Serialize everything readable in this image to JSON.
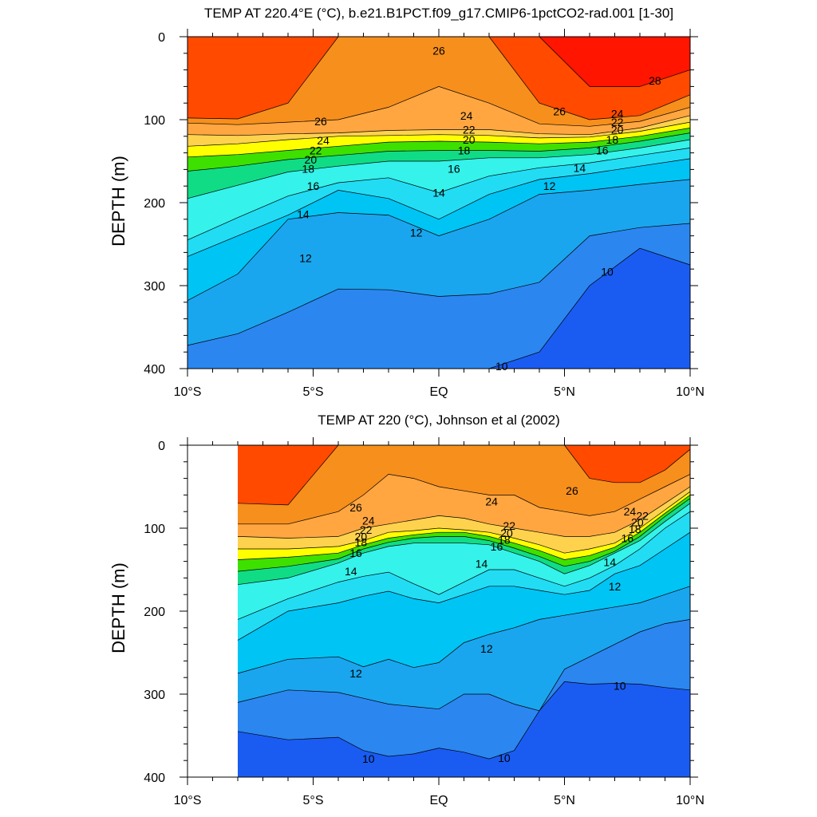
{
  "colors": {
    "levels": [
      {
        "min": 8,
        "color": "#0b3fe6"
      },
      {
        "min": 9,
        "color": "#1a5cf2"
      },
      {
        "min": 10,
        "color": "#2b86f0"
      },
      {
        "min": 11,
        "color": "#1aa6ee"
      },
      {
        "min": 12,
        "color": "#00c4f4"
      },
      {
        "min": 13,
        "color": "#22dcf4"
      },
      {
        "min": 14,
        "color": "#35f2ea"
      },
      {
        "min": 15,
        "color": "#18ebc2"
      },
      {
        "min": 16,
        "color": "#10dc86"
      },
      {
        "min": 17,
        "color": "#20d84a"
      },
      {
        "min": 18,
        "color": "#3ee000"
      },
      {
        "min": 19,
        "color": "#b8f000"
      },
      {
        "min": 20,
        "color": "#ffff00"
      },
      {
        "min": 21,
        "color": "#ffe94a"
      },
      {
        "min": 22,
        "color": "#ffd24e"
      },
      {
        "min": 23,
        "color": "#ffbc4a"
      },
      {
        "min": 24,
        "color": "#ffa640"
      },
      {
        "min": 25,
        "color": "#ffa13a"
      },
      {
        "min": 26,
        "color": "#f78f1c"
      },
      {
        "min": 27,
        "color": "#ff4a00"
      },
      {
        "min": 28,
        "color": "#ff1500"
      }
    ],
    "lines": "#000000"
  },
  "chart_data": [
    {
      "type": "contour",
      "title": "TEMP AT 220.4°E (°C), b.e21.B1PCT.f09_g17.CMIP6-1pctCO2-rad.001 [1-30]",
      "xlabel": "",
      "ylabel": "DEPTH (m)",
      "xlim": [
        -10,
        10
      ],
      "ylim": [
        0,
        400
      ],
      "y_inverted": true,
      "xticks": [
        {
          "value": -10,
          "label": "10°S"
        },
        {
          "value": -5,
          "label": "5°S"
        },
        {
          "value": 0,
          "label": "EQ"
        },
        {
          "value": 5,
          "label": "5°N"
        },
        {
          "value": 10,
          "label": "10°N"
        }
      ],
      "yticks": [
        0,
        100,
        200,
        300,
        400
      ],
      "data_xrange": [
        -10,
        10
      ],
      "x": [
        -10,
        -8,
        -6,
        -4,
        -2,
        0,
        2,
        4,
        6,
        8,
        10
      ],
      "isotherm_depths": {
        "28": [
          -1,
          -1,
          -1,
          -1,
          -1,
          -1,
          -1,
          -1,
          60,
          60,
          40
        ],
        "27": [
          98,
          99,
          80,
          0,
          -1,
          -1,
          0,
          80,
          100,
          95,
          70
        ],
        "26": [
          104,
          106,
          103,
          100,
          85,
          60,
          80,
          105,
          108,
          102,
          85
        ],
        "24": [
          118,
          119,
          117,
          116,
          113,
          112,
          112,
          117,
          118,
          110,
          95
        ],
        "22": [
          132,
          129,
          124,
          120,
          119,
          118,
          119,
          122,
          121,
          114,
          103
        ],
        "20": [
          145,
          142,
          137,
          132,
          127,
          126,
          127,
          129,
          127,
          120,
          110
        ],
        "18": [
          162,
          156,
          148,
          143,
          138,
          137,
          137,
          138,
          134,
          126,
          116
        ],
        "16": [
          195,
          179,
          163,
          156,
          150,
          150,
          146,
          146,
          142,
          134,
          124
        ],
        "14": [
          245,
          218,
          192,
          176,
          170,
          188,
          168,
          158,
          152,
          143,
          134
        ],
        "13": [
          265,
          240,
          215,
          185,
          195,
          220,
          190,
          172,
          165,
          156,
          147
        ],
        "12": [
          318,
          286,
          220,
          212,
          215,
          240,
          220,
          190,
          185,
          178,
          172
        ],
        "11": [
          372,
          358,
          332,
          304,
          305,
          313,
          310,
          296,
          240,
          230,
          225
        ],
        "10": [
          999,
          999,
          999,
          999,
          992,
          992,
          997,
          380,
          300,
          255,
          275
        ]
      },
      "contour_labels": [
        {
          "value": 26,
          "x": 0.0,
          "depth": 17
        },
        {
          "value": 28,
          "x": 8.6,
          "depth": 53
        },
        {
          "value": 26,
          "x": -4.7,
          "depth": 102
        },
        {
          "value": 24,
          "x": 1.1,
          "depth": 95
        },
        {
          "value": 26,
          "x": 4.8,
          "depth": 90
        },
        {
          "value": 24,
          "x": 7.1,
          "depth": 93
        },
        {
          "value": 22,
          "x": 7.1,
          "depth": 103
        },
        {
          "value": 20,
          "x": 7.1,
          "depth": 112
        },
        {
          "value": 24,
          "x": -4.6,
          "depth": 125
        },
        {
          "value": 22,
          "x": -4.9,
          "depth": 137
        },
        {
          "value": 20,
          "x": -5.1,
          "depth": 148
        },
        {
          "value": 18,
          "x": -5.2,
          "depth": 159
        },
        {
          "value": 22,
          "x": 1.2,
          "depth": 112
        },
        {
          "value": 20,
          "x": 1.2,
          "depth": 124
        },
        {
          "value": 18,
          "x": 1.0,
          "depth": 137
        },
        {
          "value": 18,
          "x": 6.9,
          "depth": 124
        },
        {
          "value": 16,
          "x": 6.5,
          "depth": 137
        },
        {
          "value": 14,
          "x": 5.6,
          "depth": 158
        },
        {
          "value": 16,
          "x": 0.6,
          "depth": 159
        },
        {
          "value": 16,
          "x": -5.0,
          "depth": 180
        },
        {
          "value": 14,
          "x": -5.4,
          "depth": 214
        },
        {
          "value": 14,
          "x": 0.0,
          "depth": 188
        },
        {
          "value": 12,
          "x": 4.4,
          "depth": 180
        },
        {
          "value": 12,
          "x": -0.9,
          "depth": 236
        },
        {
          "value": 12,
          "x": -5.3,
          "depth": 267
        },
        {
          "value": 10,
          "x": 6.7,
          "depth": 283
        },
        {
          "value": 10,
          "x": 2.5,
          "depth": 397
        }
      ]
    },
    {
      "type": "contour",
      "title": "TEMP AT 220 (°C), Johnson et al (2002)",
      "xlabel": "",
      "ylabel": "DEPTH (m)",
      "xlim": [
        -10,
        10
      ],
      "ylim": [
        0,
        400
      ],
      "y_inverted": true,
      "xticks": [
        {
          "value": -10,
          "label": "10°S"
        },
        {
          "value": -5,
          "label": "5°S"
        },
        {
          "value": 0,
          "label": "EQ"
        },
        {
          "value": 5,
          "label": "5°N"
        },
        {
          "value": 10,
          "label": "10°N"
        }
      ],
      "yticks": [
        0,
        100,
        200,
        300,
        400
      ],
      "data_xrange": [
        -8,
        10
      ],
      "x": [
        -8,
        -6,
        -4,
        -3,
        -2,
        -1,
        0,
        1,
        2,
        3,
        4,
        5,
        6,
        7,
        8,
        9,
        10
      ],
      "isotherm_depths": {
        "27": [
          70,
          72,
          0,
          0,
          0,
          0,
          0,
          0,
          0,
          0,
          0,
          0,
          40,
          45,
          45,
          30,
          5
        ],
        "26": [
          95,
          95,
          80,
          60,
          35,
          40,
          50,
          55,
          60,
          60,
          75,
          80,
          85,
          80,
          65,
          50,
          35
        ],
        "24": [
          110,
          112,
          110,
          100,
          95,
          90,
          85,
          88,
          95,
          100,
          105,
          110,
          110,
          105,
          90,
          70,
          50
        ],
        "22": [
          125,
          125,
          122,
          115,
          105,
          103,
          100,
          102,
          105,
          112,
          120,
          130,
          125,
          118,
          100,
          78,
          56
        ],
        "20": [
          138,
          135,
          130,
          120,
          112,
          108,
          105,
          105,
          110,
          118,
          127,
          138,
          133,
          123,
          105,
          82,
          60
        ],
        "18": [
          152,
          146,
          137,
          125,
          117,
          112,
          110,
          110,
          115,
          124,
          134,
          146,
          140,
          128,
          110,
          86,
          64
        ],
        "16": [
          168,
          160,
          142,
          130,
          122,
          118,
          118,
          118,
          120,
          130,
          140,
          155,
          145,
          130,
          115,
          92,
          70
        ],
        "14": [
          210,
          185,
          165,
          158,
          153,
          167,
          180,
          165,
          150,
          150,
          160,
          170,
          160,
          145,
          125,
          100,
          80
        ],
        "13": [
          235,
          200,
          190,
          182,
          176,
          185,
          190,
          180,
          170,
          170,
          175,
          180,
          175,
          155,
          145,
          125,
          105
        ],
        "12": [
          275,
          258,
          255,
          267,
          258,
          268,
          262,
          238,
          228,
          220,
          210,
          205,
          200,
          195,
          190,
          180,
          170
        ],
        "11": [
          310,
          295,
          298,
          305,
          312,
          315,
          318,
          300,
          300,
          312,
          320,
          270,
          255,
          240,
          225,
          215,
          210
        ],
        "10": [
          345,
          355,
          352,
          368,
          375,
          372,
          365,
          370,
          378,
          368,
          320,
          285,
          288,
          287,
          288,
          292,
          295
        ]
      },
      "contour_labels": [
        {
          "value": 26,
          "x": -3.3,
          "depth": 75
        },
        {
          "value": 24,
          "x": -2.8,
          "depth": 91
        },
        {
          "value": 22,
          "x": -2.9,
          "depth": 102
        },
        {
          "value": 20,
          "x": -3.1,
          "depth": 110
        },
        {
          "value": 18,
          "x": -3.1,
          "depth": 117
        },
        {
          "value": 16,
          "x": -3.3,
          "depth": 130
        },
        {
          "value": 14,
          "x": -3.5,
          "depth": 152
        },
        {
          "value": 24,
          "x": 2.1,
          "depth": 68
        },
        {
          "value": 26,
          "x": 5.3,
          "depth": 55
        },
        {
          "value": 22,
          "x": 2.8,
          "depth": 97
        },
        {
          "value": 20,
          "x": 2.7,
          "depth": 106
        },
        {
          "value": 18,
          "x": 2.6,
          "depth": 114
        },
        {
          "value": 16,
          "x": 2.3,
          "depth": 122
        },
        {
          "value": 14,
          "x": 1.7,
          "depth": 143
        },
        {
          "value": 24,
          "x": 7.6,
          "depth": 80
        },
        {
          "value": 22,
          "x": 8.1,
          "depth": 85
        },
        {
          "value": 20,
          "x": 7.9,
          "depth": 93
        },
        {
          "value": 18,
          "x": 7.8,
          "depth": 101
        },
        {
          "value": 16,
          "x": 7.5,
          "depth": 112
        },
        {
          "value": 14,
          "x": 6.8,
          "depth": 141
        },
        {
          "value": 12,
          "x": 7.0,
          "depth": 170
        },
        {
          "value": 12,
          "x": 1.9,
          "depth": 245
        },
        {
          "value": 12,
          "x": -3.3,
          "depth": 275
        },
        {
          "value": 10,
          "x": 7.2,
          "depth": 290
        },
        {
          "value": 10,
          "x": -2.8,
          "depth": 378
        },
        {
          "value": 10,
          "x": 2.6,
          "depth": 377
        }
      ]
    }
  ]
}
